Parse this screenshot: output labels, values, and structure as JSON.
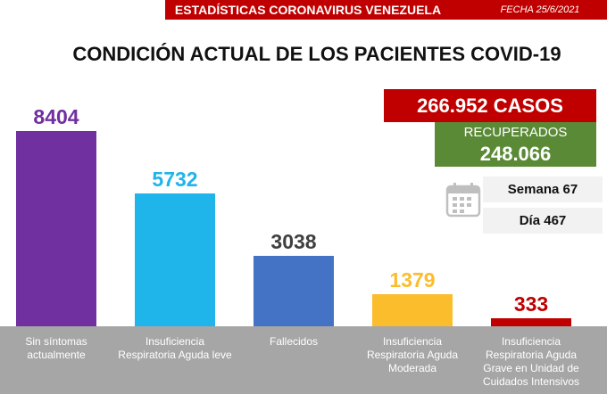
{
  "chart_data": {
    "type": "bar",
    "header": "ESTADÍSTICAS CORONAVIRUS VENEZUELA",
    "date": "FECHA 25/6/2021",
    "title": "CONDICIÓN ACTUAL DE LOS PACIENTES COVID-19",
    "cases": "266.952 CASOS",
    "recovered_label": "RECUPERADOS",
    "recovered": "248.066",
    "week": "Semana 67",
    "day": "Día 467",
    "categories": [
      "Sin síntomas actualmente",
      "Insuficiencia Respiratoria Aguda leve",
      "Fallecidos",
      "Insuficiencia Respiratoria Aguda Moderada",
      "Insuficiencia Respiratoria Aguda Grave en Unidad de Cuidados Intensivos"
    ],
    "values": [
      8404,
      5732,
      3038,
      1379,
      333
    ],
    "colors": [
      "#7030a0",
      "#1fb4ea",
      "#4472c4",
      "#fbbd2c",
      "#c00000"
    ],
    "value_label_colors": [
      "#7030a0",
      "#1fb4ea",
      "#404040",
      "#fbbd2c",
      "#c00000"
    ]
  }
}
